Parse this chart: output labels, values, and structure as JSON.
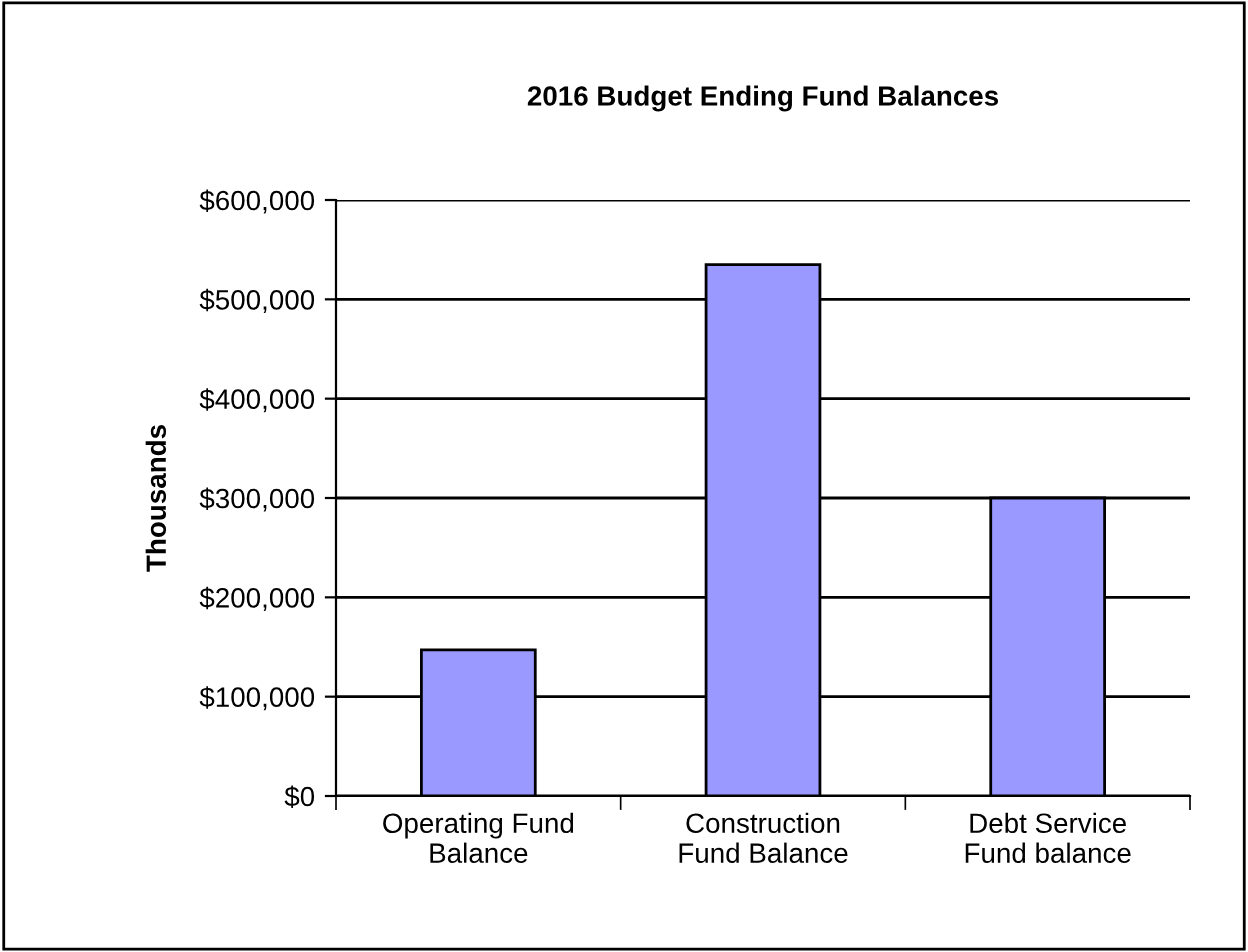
{
  "chart_data": {
    "type": "bar",
    "title": "2016 Budget Ending Fund Balances",
    "ylabel": "Thousands",
    "categories": [
      "Operating Fund\nBalance",
      "Construction\nFund Balance",
      "Debt Service\nFund balance"
    ],
    "values": [
      147000,
      535000,
      300000
    ],
    "color": "#9999ff",
    "ylim": [
      0,
      600000
    ],
    "yticks": [
      {
        "value": 0,
        "label": "$0"
      },
      {
        "value": 100000,
        "label": "$100,000"
      },
      {
        "value": 200000,
        "label": "$200,000"
      },
      {
        "value": 300000,
        "label": "$300,000"
      },
      {
        "value": 400000,
        "label": "$400,000"
      },
      {
        "value": 500000,
        "label": "$500,000"
      },
      {
        "value": 600000,
        "label": "$600,000"
      }
    ],
    "grid": "y"
  }
}
